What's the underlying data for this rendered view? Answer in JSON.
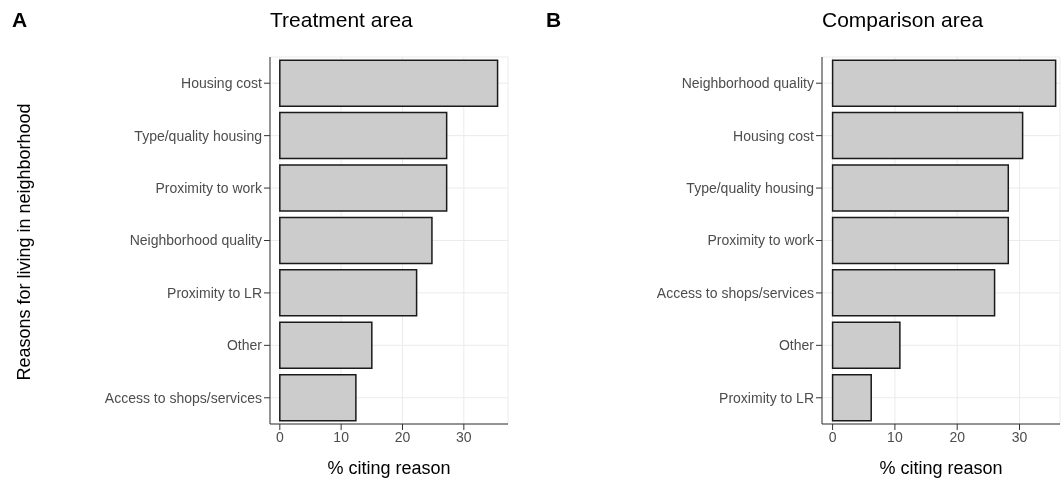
{
  "chart_data": [
    {
      "type": "bar",
      "orientation": "horizontal",
      "title": "Treatment area",
      "xlabel": "% citing reason",
      "ylabel": "Reasons for living in neighborhood",
      "annotations": [
        "A"
      ],
      "categories": [
        "Housing cost",
        "Type/quality housing",
        "Proximity to work",
        "Neighborhood quality",
        "Proximity to LR",
        "Other",
        "Access to shops/services"
      ],
      "values": [
        35.5,
        27.2,
        27.2,
        24.8,
        22.3,
        15.0,
        12.4
      ],
      "color": "#cccccc",
      "xlim": [
        -1.6,
        37.2
      ],
      "xticks": [
        0,
        10,
        20,
        30
      ],
      "grid": true
    },
    {
      "type": "bar",
      "orientation": "horizontal",
      "title": "Comparison area",
      "xlabel": "% citing reason",
      "annotations": [
        "B"
      ],
      "categories": [
        "Neighborhood quality",
        "Housing cost",
        "Type/quality housing",
        "Proximity to work",
        "Access to shops/services",
        "Other",
        "Proximity to LR"
      ],
      "values": [
        35.8,
        30.5,
        28.2,
        28.2,
        26.0,
        10.8,
        6.2
      ],
      "color": "#cccccc",
      "xlim": [
        -1.7,
        36.5
      ],
      "xticks": [
        0,
        10,
        20,
        30
      ],
      "grid": true
    }
  ]
}
